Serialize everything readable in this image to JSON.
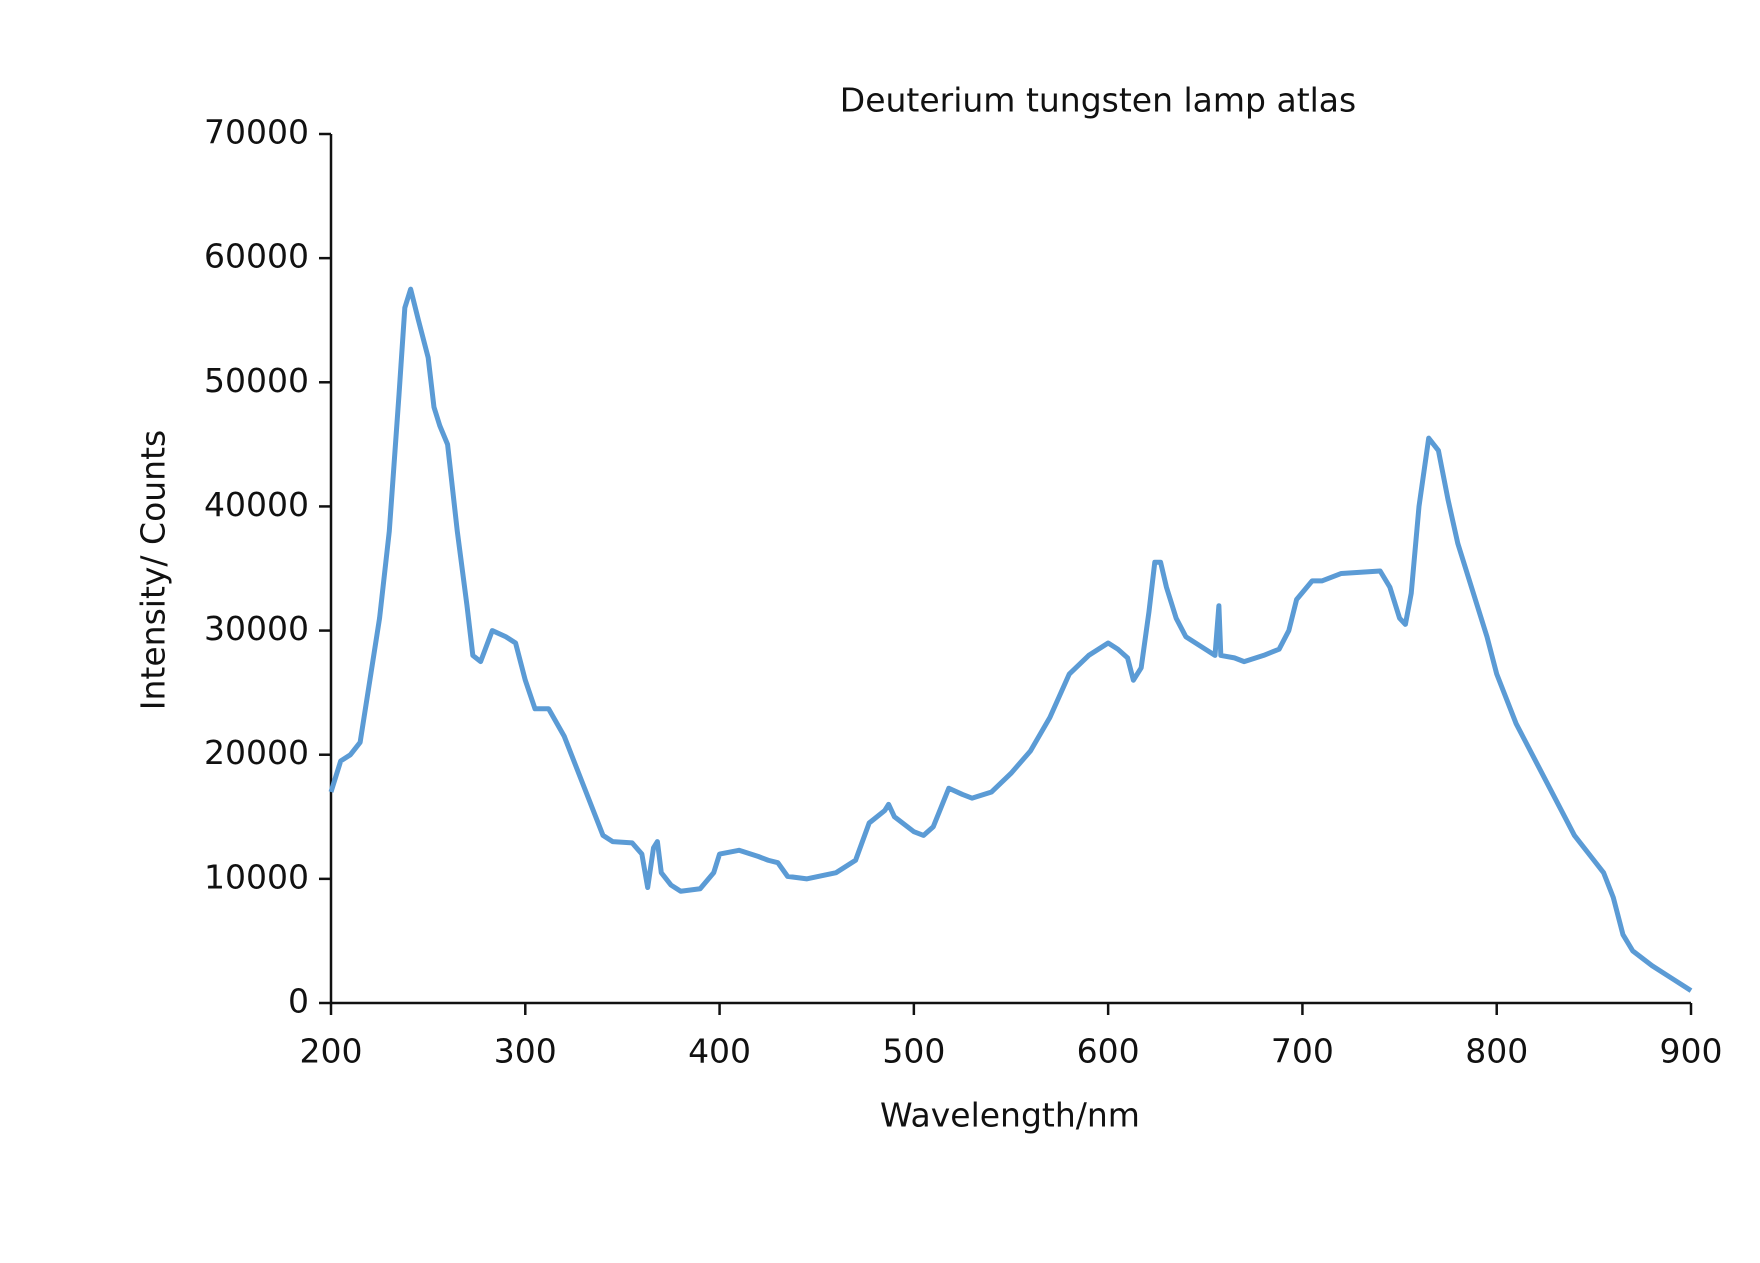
{
  "chart_data": {
    "type": "line",
    "title": "Deuterium tungsten lamp atlas",
    "x_label": "Wavelength/nm",
    "y_label": "Intensity/ Counts",
    "x": [
      200,
      205,
      210,
      215,
      220,
      225,
      230,
      235,
      238,
      241,
      245,
      250,
      253,
      256,
      260,
      265,
      270,
      273,
      277,
      283,
      290,
      295,
      300,
      305,
      312,
      320,
      330,
      340,
      345,
      355,
      360,
      363,
      366,
      368,
      370,
      375,
      380,
      390,
      397,
      400,
      410,
      420,
      425,
      430,
      435,
      445,
      460,
      470,
      477,
      485,
      487,
      490,
      500,
      505,
      510,
      518,
      525,
      530,
      540,
      550,
      560,
      570,
      580,
      590,
      600,
      605,
      610,
      613,
      617,
      621,
      624,
      627,
      630,
      635,
      640,
      650,
      655,
      657,
      658,
      665,
      670,
      680,
      688,
      693,
      697,
      705,
      710,
      720,
      730,
      740,
      745,
      750,
      753,
      756,
      760,
      765,
      770,
      775,
      780,
      790,
      795,
      800,
      810,
      820,
      830,
      840,
      850,
      855,
      860,
      865,
      870,
      880,
      890,
      900
    ],
    "series": [
      {
        "name": "Intensity",
        "color": "#5b9bd5",
        "values": [
          17000,
          19500,
          20000,
          21000,
          26000,
          31000,
          38000,
          49000,
          56000,
          57500,
          55000,
          52000,
          48000,
          46500,
          45000,
          38000,
          32000,
          28000,
          27500,
          30000,
          29500,
          29000,
          26000,
          23700,
          23700,
          21500,
          17500,
          13500,
          13000,
          12900,
          12000,
          9300,
          12500,
          13000,
          10500,
          9500,
          9000,
          9200,
          10500,
          12000,
          12300,
          11800,
          11500,
          11300,
          10200,
          10000,
          10500,
          11500,
          14500,
          15500,
          16000,
          15000,
          13800,
          13500,
          14200,
          17300,
          16800,
          16500,
          17000,
          18500,
          20300,
          23000,
          26500,
          28000,
          29000,
          28500,
          27800,
          26000,
          27000,
          31500,
          35500,
          35500,
          33500,
          31000,
          29500,
          28500,
          28000,
          32000,
          28000,
          27800,
          27500,
          28000,
          28500,
          30000,
          32500,
          34000,
          34000,
          34600,
          34700,
          34800,
          33500,
          31000,
          30500,
          33000,
          40000,
          45500,
          44500,
          40500,
          37000,
          32000,
          29500,
          26500,
          22500,
          19500,
          16500,
          13500,
          11500,
          10500,
          8500,
          5500,
          4200,
          3000,
          2000,
          1000
        ]
      }
    ],
    "xlim": [
      200,
      900
    ],
    "xticks": [
      200,
      300,
      400,
      500,
      600,
      700,
      800,
      900
    ],
    "ylim": [
      0,
      70000
    ],
    "yticks": [
      0,
      10000,
      20000,
      30000,
      40000,
      50000,
      60000,
      70000
    ]
  }
}
